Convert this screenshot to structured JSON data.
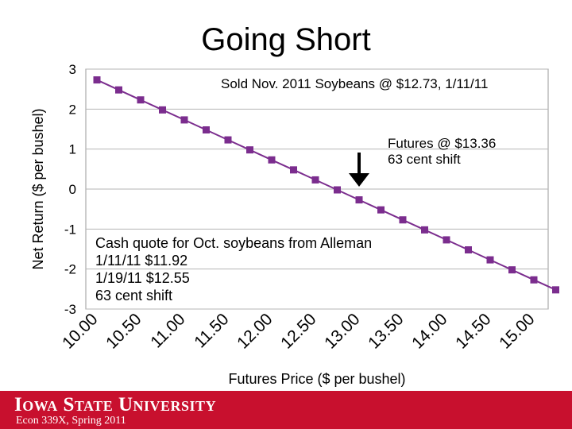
{
  "slide": {
    "title": "Going Short",
    "footer_logo": "Iowa State University",
    "footer_course": "Econ 339X, Spring 2011"
  },
  "annotations": {
    "sold": "Sold Nov. 2011 Soybeans @ $12.73, 1/11/11",
    "futures_line1": "Futures @ $13.36",
    "futures_line2": "63 cent shift",
    "cash_line1": "Cash quote for Oct. soybeans from Alleman",
    "cash_line2": "1/11/11  $11.92",
    "cash_line3": "1/19/11  $12.55",
    "cash_line4": "63 cent shift"
  },
  "chart_data": {
    "type": "line",
    "xlabel": "Futures Price ($ per bushel)",
    "ylabel": "Net Return ($ per bushel)",
    "xlim": [
      10.0,
      15.25
    ],
    "ylim": [
      -3,
      3
    ],
    "xticks": [
      "10.00",
      "10.50",
      "11.00",
      "11.50",
      "12.00",
      "12.50",
      "13.00",
      "13.50",
      "14.00",
      "14.50",
      "15.00"
    ],
    "yticks": [
      "3",
      "2",
      "1",
      "0",
      "-1",
      "-2",
      "-3"
    ],
    "series_color": "#7b2d8e",
    "arrow_at_x": 13.0,
    "x": [
      10.0,
      10.25,
      10.5,
      10.75,
      11.0,
      11.25,
      11.5,
      11.75,
      12.0,
      12.25,
      12.5,
      12.75,
      13.0,
      13.25,
      13.5,
      13.75,
      14.0,
      14.25,
      14.5,
      14.75,
      15.0,
      15.25
    ],
    "y": [
      2.73,
      2.48,
      2.23,
      1.98,
      1.73,
      1.48,
      1.23,
      0.98,
      0.73,
      0.48,
      0.23,
      -0.02,
      -0.27,
      -0.52,
      -0.77,
      -1.02,
      -1.27,
      -1.52,
      -1.77,
      -2.02,
      -2.27,
      -2.52
    ]
  }
}
